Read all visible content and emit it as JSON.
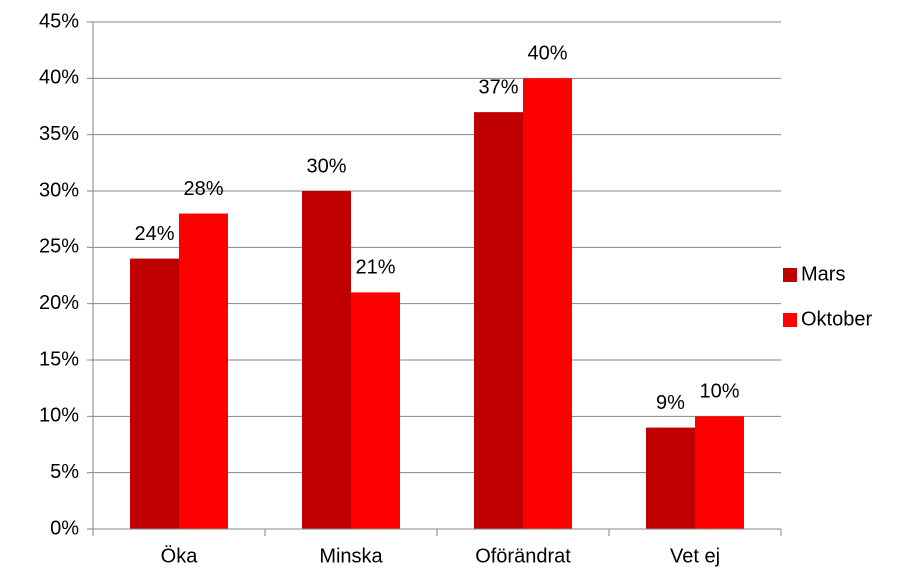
{
  "chart_data": {
    "type": "bar",
    "categories": [
      "Öka",
      "Minska",
      "Oförändrat",
      "Vet ej"
    ],
    "series": [
      {
        "name": "Mars",
        "color": "#c00000",
        "values": [
          24,
          30,
          37,
          9
        ],
        "value_labels": [
          "24%",
          "30%",
          "37%",
          "9%"
        ]
      },
      {
        "name": "Oktober",
        "color": "#ff0000",
        "values": [
          28,
          21,
          40,
          10
        ],
        "value_labels": [
          "28%",
          "21%",
          "40%",
          "10%"
        ]
      }
    ],
    "ylim": [
      0,
      45
    ],
    "yticks": [
      {
        "value": 0,
        "label": "0%"
      },
      {
        "value": 5,
        "label": "5%"
      },
      {
        "value": 10,
        "label": "10%"
      },
      {
        "value": 15,
        "label": "15%"
      },
      {
        "value": 20,
        "label": "20%"
      },
      {
        "value": 25,
        "label": "25%"
      },
      {
        "value": 30,
        "label": "30%"
      },
      {
        "value": 35,
        "label": "35%"
      },
      {
        "value": 40,
        "label": "40%"
      },
      {
        "value": 45,
        "label": "45%"
      }
    ],
    "grid": true,
    "legend": "right"
  }
}
